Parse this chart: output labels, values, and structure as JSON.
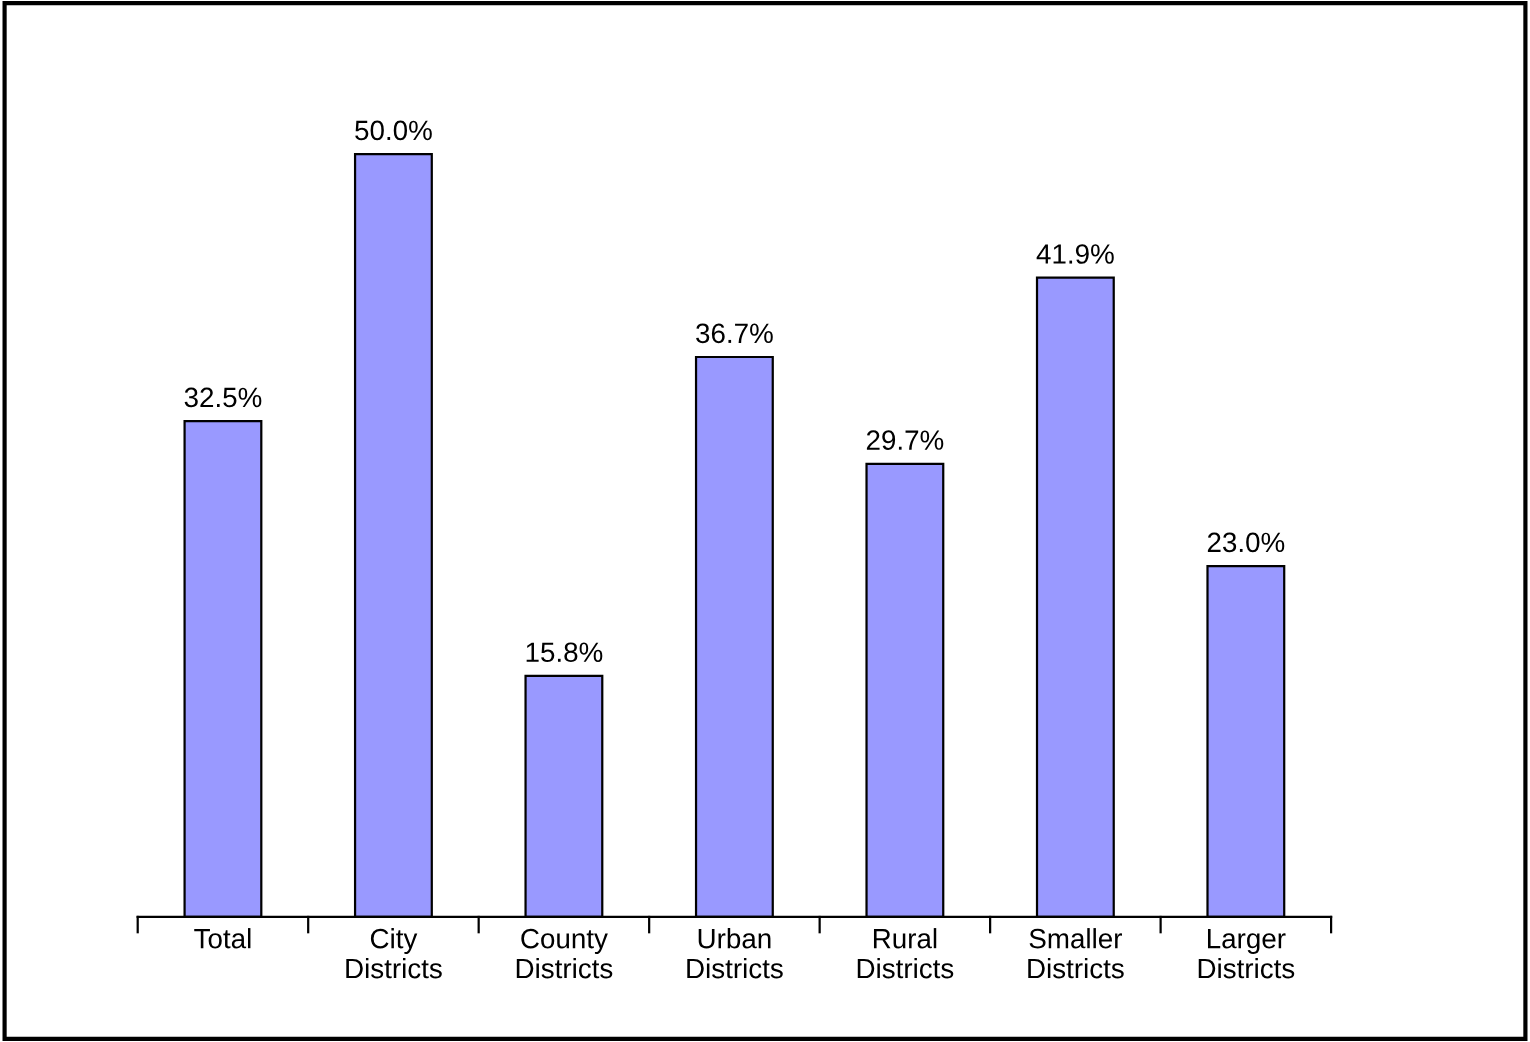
{
  "chart_data": {
    "type": "bar",
    "categories": [
      "Total",
      "City\nDistricts",
      "County\nDistricts",
      "Urban\nDistricts",
      "Rural\nDistricts",
      "Smaller\nDistricts",
      "Larger\nDistricts"
    ],
    "values": [
      32.5,
      50.0,
      15.8,
      36.7,
      29.7,
      41.9,
      23.0
    ],
    "value_labels": [
      "32.5%",
      "50.0%",
      "15.8%",
      "36.7%",
      "29.7%",
      "41.9%",
      "23.0%"
    ],
    "color": "#9999ff",
    "grid": false,
    "legend": false
  }
}
